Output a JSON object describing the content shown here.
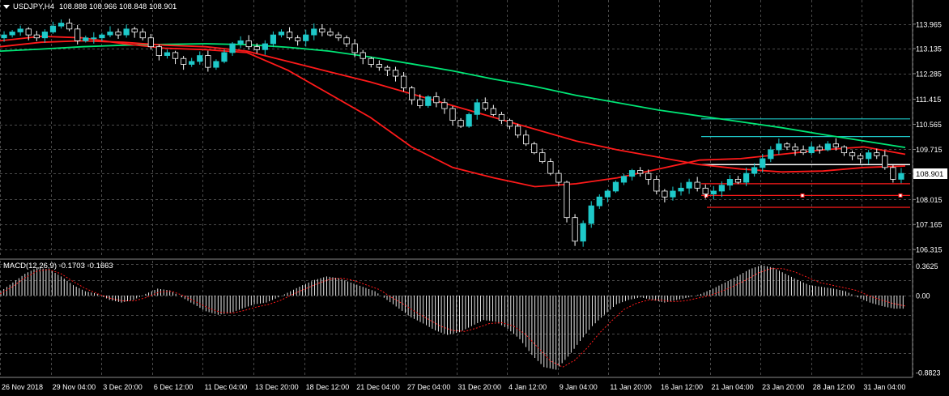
{
  "chart_data": [
    {
      "type": "candlestick",
      "symbol_label": "USDJPY,H4",
      "ohlc_label": "108.888 108.966 108.848 108.901",
      "price_axis": {
        "range": [
          106.1,
          114.4
        ],
        "ticks": [
          "113.965",
          "113.135",
          "112.285",
          "111.415",
          "110.565",
          "109.715",
          "108.901",
          "108.015",
          "107.165",
          "106.315"
        ],
        "current_price": "108.901"
      },
      "time_axis": [
        "26 Nov 2018",
        "29 Nov 04:00",
        "3 Dec 20:00",
        "6 Dec 12:00",
        "11 Dec 04:00",
        "13 Dec 20:00",
        "18 Dec 12:00",
        "21 Dec 04:00",
        "27 Dec 04:00",
        "31 Dec 20:00",
        "4 Jan 12:00",
        "9 Jan 04:00",
        "11 Jan 20:00",
        "16 Jan 12:00",
        "21 Jan 04:00",
        "23 Jan 20:00",
        "28 Jan 12:00",
        "31 Jan 04:00"
      ],
      "close_series": [
        113.6,
        113.7,
        113.8,
        113.6,
        113.5,
        113.7,
        113.9,
        114.0,
        113.8,
        113.4,
        113.5,
        113.5,
        113.6,
        113.7,
        113.6,
        113.8,
        113.7,
        113.5,
        113.2,
        112.9,
        113.0,
        112.8,
        112.6,
        112.7,
        112.9,
        112.5,
        112.7,
        113.0,
        113.3,
        113.4,
        113.2,
        113.1,
        113.3,
        113.6,
        113.7,
        113.5,
        113.4,
        113.6,
        113.8,
        113.7,
        113.6,
        113.5,
        113.3,
        113.0,
        112.8,
        112.6,
        112.5,
        112.4,
        112.2,
        111.8,
        111.4,
        111.2,
        111.5,
        111.3,
        111.1,
        110.7,
        110.5,
        110.9,
        111.3,
        111.1,
        110.9,
        110.7,
        110.5,
        110.2,
        109.9,
        109.6,
        109.3,
        108.9,
        108.6,
        107.4,
        106.6,
        107.2,
        107.8,
        108.1,
        108.3,
        108.6,
        108.8,
        109.0,
        108.9,
        108.7,
        108.3,
        108.1,
        108.3,
        108.4,
        108.6,
        108.4,
        108.2,
        108.3,
        108.5,
        108.7,
        108.6,
        108.9,
        109.1,
        109.4,
        109.7,
        109.9,
        109.8,
        109.7,
        109.6,
        109.8,
        109.7,
        109.9,
        109.8,
        109.6,
        109.5,
        109.4,
        109.6,
        109.5,
        109.1,
        108.7,
        108.9
      ],
      "moving_averages": [
        {
          "color": "#00e676",
          "values": [
            113.05,
            113.12,
            113.2,
            113.25,
            113.28,
            113.3,
            113.27,
            113.18,
            113.05,
            112.85,
            112.62,
            112.38,
            112.1,
            111.85,
            111.55,
            111.3,
            111.05,
            110.85,
            110.65,
            110.45,
            110.22,
            110.0,
            109.78
          ]
        },
        {
          "color": "#ff1a1a",
          "values": [
            113.2,
            113.35,
            113.4,
            113.35,
            113.25,
            113.2,
            113.05,
            112.7,
            112.35,
            112.0,
            111.6,
            111.2,
            110.8,
            110.4,
            110.0,
            109.7,
            109.45,
            109.2,
            109.05,
            108.95,
            108.98,
            109.1,
            109.15
          ]
        },
        {
          "color": "#ff1a1a",
          "values": [
            113.4,
            113.55,
            113.5,
            113.3,
            113.15,
            113.1,
            113.0,
            112.4,
            111.6,
            110.8,
            109.8,
            109.1,
            108.75,
            108.45,
            108.55,
            108.75,
            109.05,
            109.35,
            109.4,
            109.55,
            109.7,
            109.8,
            109.55
          ]
        }
      ],
      "horizontal_levels": [
        {
          "price": 110.75,
          "color": "#1ec9c9"
        },
        {
          "price": 110.15,
          "color": "#1ec9c9"
        },
        {
          "price": 109.2,
          "color": "#ffffff"
        },
        {
          "price": 108.55,
          "color": "#ff1a1a"
        },
        {
          "price": 108.15,
          "color": "#ff1a1a"
        },
        {
          "price": 107.75,
          "color": "#ff1a1a"
        }
      ],
      "grid": true
    },
    {
      "type": "histogram",
      "indicator_label": "MACD(12,26,9) -0.1703 -0.1663",
      "y_ticks": [
        "0.3625",
        "0.00",
        "-0.8823"
      ],
      "range": [
        -0.8823,
        0.3625
      ],
      "histogram": [
        0.05,
        0.15,
        0.25,
        0.32,
        0.3,
        0.22,
        0.12,
        0.05,
        0.02,
        -0.05,
        -0.08,
        -0.05,
        0.02,
        0.08,
        0.06,
        -0.02,
        -0.1,
        -0.18,
        -0.22,
        -0.2,
        -0.15,
        -0.1,
        -0.08,
        -0.02,
        0.05,
        0.12,
        0.18,
        0.22,
        0.2,
        0.15,
        0.1,
        0.05,
        -0.05,
        -0.15,
        -0.25,
        -0.32,
        -0.4,
        -0.45,
        -0.42,
        -0.35,
        -0.28,
        -0.3,
        -0.38,
        -0.5,
        -0.68,
        -0.82,
        -0.85,
        -0.7,
        -0.52,
        -0.35,
        -0.22,
        -0.1,
        -0.05,
        -0.02,
        -0.05,
        -0.08,
        -0.05,
        -0.02,
        0.02,
        0.08,
        0.15,
        0.22,
        0.3,
        0.35,
        0.32,
        0.25,
        0.18,
        0.12,
        0.1,
        0.08,
        0.05,
        -0.02,
        -0.08,
        -0.12,
        -0.15
      ],
      "signal": [
        0.02,
        0.1,
        0.2,
        0.28,
        0.3,
        0.25,
        0.16,
        0.08,
        0.02,
        -0.03,
        -0.06,
        -0.06,
        -0.02,
        0.04,
        0.05,
        0.0,
        -0.07,
        -0.14,
        -0.19,
        -0.2,
        -0.17,
        -0.13,
        -0.1,
        -0.05,
        0.02,
        0.08,
        0.14,
        0.19,
        0.2,
        0.17,
        0.12,
        0.07,
        -0.02,
        -0.1,
        -0.19,
        -0.27,
        -0.35,
        -0.4,
        -0.41,
        -0.37,
        -0.32,
        -0.31,
        -0.35,
        -0.45,
        -0.6,
        -0.75,
        -0.82,
        -0.74,
        -0.6,
        -0.43,
        -0.29,
        -0.16,
        -0.09,
        -0.05,
        -0.05,
        -0.07,
        -0.06,
        -0.03,
        0.0,
        0.05,
        0.11,
        0.18,
        0.26,
        0.31,
        0.31,
        0.27,
        0.21,
        0.15,
        0.12,
        0.09,
        0.06,
        0.0,
        -0.05,
        -0.09,
        -0.12
      ],
      "histogram_color": "#ffffff",
      "signal_color": "#ff1a1a"
    }
  ]
}
